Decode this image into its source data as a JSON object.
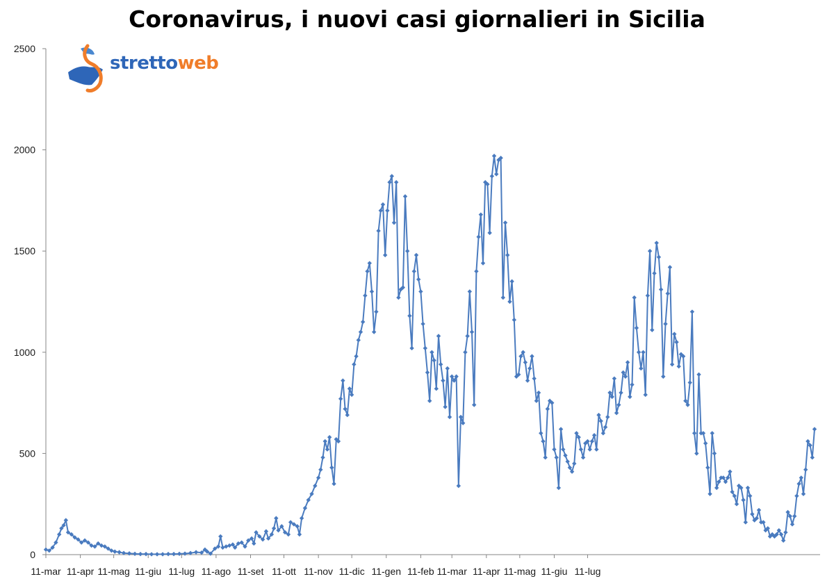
{
  "title": "Coronavirus, i nuovi casi giornalieri in Sicilia",
  "logo": {
    "part1": "stretto",
    "part2": "web"
  },
  "colors": {
    "series": "#4a7bbf",
    "axis": "#868686",
    "logo_blue": "#2e66b8",
    "logo_orange": "#f07d2a"
  },
  "chart_data": {
    "type": "line",
    "title": "Coronavirus, i nuovi casi giornalieri in Sicilia",
    "xlabel": "",
    "ylabel": "",
    "ylim": [
      0,
      2500
    ],
    "yticks": [
      0,
      500,
      1000,
      1500,
      2000,
      2500
    ],
    "xtick_labels": [
      "11-mar",
      "11-apr",
      "11-mag",
      "11-giu",
      "11-lug",
      "11-ago",
      "11-set",
      "11-ott",
      "11-nov",
      "11-dic",
      "11-gen",
      "11-feb",
      "11-mar",
      "11-apr",
      "11-mag",
      "11-giu",
      "11-lug"
    ],
    "xtick_days": [
      0,
      31,
      61,
      92,
      122,
      153,
      184,
      214,
      245,
      275,
      306,
      337,
      365,
      396,
      426,
      457,
      487
    ],
    "grid": false,
    "legend": "none",
    "markers": "diamond",
    "series": [
      {
        "values": [
          [
            0,
            25
          ],
          [
            3,
            20
          ],
          [
            6,
            35
          ],
          [
            9,
            60
          ],
          [
            12,
            100
          ],
          [
            14,
            130
          ],
          [
            16,
            145
          ],
          [
            18,
            170
          ],
          [
            20,
            110
          ],
          [
            23,
            100
          ],
          [
            26,
            85
          ],
          [
            29,
            75
          ],
          [
            32,
            60
          ],
          [
            35,
            70
          ],
          [
            38,
            60
          ],
          [
            41,
            45
          ],
          [
            44,
            40
          ],
          [
            47,
            55
          ],
          [
            50,
            45
          ],
          [
            53,
            40
          ],
          [
            56,
            30
          ],
          [
            59,
            20
          ],
          [
            62,
            15
          ],
          [
            66,
            12
          ],
          [
            70,
            8
          ],
          [
            75,
            6
          ],
          [
            80,
            4
          ],
          [
            85,
            3
          ],
          [
            90,
            3
          ],
          [
            95,
            2
          ],
          [
            100,
            2
          ],
          [
            105,
            2
          ],
          [
            110,
            3
          ],
          [
            115,
            3
          ],
          [
            120,
            4
          ],
          [
            125,
            5
          ],
          [
            130,
            8
          ],
          [
            135,
            12
          ],
          [
            140,
            10
          ],
          [
            143,
            25
          ],
          [
            145,
            15
          ],
          [
            148,
            5
          ],
          [
            152,
            30
          ],
          [
            155,
            40
          ],
          [
            157,
            90
          ],
          [
            159,
            35
          ],
          [
            162,
            40
          ],
          [
            165,
            45
          ],
          [
            168,
            50
          ],
          [
            170,
            35
          ],
          [
            173,
            55
          ],
          [
            176,
            60
          ],
          [
            179,
            40
          ],
          [
            182,
            70
          ],
          [
            185,
            80
          ],
          [
            187,
            55
          ],
          [
            189,
            110
          ],
          [
            192,
            90
          ],
          [
            195,
            75
          ],
          [
            198,
            115
          ],
          [
            200,
            80
          ],
          [
            203,
            100
          ],
          [
            205,
            130
          ],
          [
            207,
            180
          ],
          [
            209,
            120
          ],
          [
            212,
            140
          ],
          [
            215,
            110
          ],
          [
            218,
            100
          ],
          [
            220,
            160
          ],
          [
            223,
            150
          ],
          [
            226,
            140
          ],
          [
            228,
            100
          ],
          [
            230,
            180
          ],
          [
            233,
            230
          ],
          [
            236,
            270
          ],
          [
            239,
            300
          ],
          [
            242,
            340
          ],
          [
            245,
            380
          ],
          [
            247,
            420
          ],
          [
            249,
            480
          ],
          [
            251,
            560
          ],
          [
            253,
            520
          ],
          [
            255,
            580
          ],
          [
            257,
            430
          ],
          [
            259,
            350
          ],
          [
            261,
            570
          ],
          [
            263,
            560
          ],
          [
            265,
            770
          ],
          [
            267,
            860
          ],
          [
            269,
            720
          ],
          [
            271,
            690
          ],
          [
            273,
            820
          ],
          [
            275,
            790
          ],
          [
            277,
            940
          ],
          [
            279,
            980
          ],
          [
            281,
            1060
          ],
          [
            283,
            1100
          ],
          [
            285,
            1150
          ],
          [
            287,
            1280
          ],
          [
            289,
            1400
          ],
          [
            291,
            1440
          ],
          [
            293,
            1300
          ],
          [
            295,
            1100
          ],
          [
            297,
            1200
          ],
          [
            299,
            1600
          ],
          [
            301,
            1700
          ],
          [
            303,
            1730
          ],
          [
            305,
            1480
          ],
          [
            307,
            1700
          ],
          [
            309,
            1840
          ],
          [
            311,
            1870
          ],
          [
            313,
            1640
          ],
          [
            315,
            1840
          ],
          [
            317,
            1270
          ],
          [
            319,
            1310
          ],
          [
            321,
            1320
          ],
          [
            323,
            1770
          ],
          [
            325,
            1500
          ],
          [
            327,
            1180
          ],
          [
            329,
            1020
          ],
          [
            331,
            1400
          ],
          [
            333,
            1480
          ],
          [
            335,
            1360
          ],
          [
            337,
            1300
          ],
          [
            339,
            1140
          ],
          [
            341,
            1020
          ],
          [
            343,
            900
          ],
          [
            345,
            760
          ],
          [
            347,
            1000
          ],
          [
            349,
            960
          ],
          [
            351,
            820
          ],
          [
            353,
            1080
          ],
          [
            355,
            940
          ],
          [
            357,
            860
          ],
          [
            359,
            730
          ],
          [
            361,
            920
          ],
          [
            363,
            680
          ],
          [
            365,
            880
          ],
          [
            367,
            860
          ],
          [
            369,
            880
          ],
          [
            371,
            340
          ],
          [
            373,
            680
          ],
          [
            375,
            650
          ],
          [
            377,
            1000
          ],
          [
            379,
            1080
          ],
          [
            381,
            1300
          ],
          [
            383,
            1100
          ],
          [
            385,
            740
          ],
          [
            387,
            1400
          ],
          [
            389,
            1570
          ],
          [
            391,
            1680
          ],
          [
            393,
            1440
          ],
          [
            395,
            1840
          ],
          [
            397,
            1830
          ],
          [
            399,
            1590
          ],
          [
            401,
            1870
          ],
          [
            403,
            1970
          ],
          [
            405,
            1880
          ],
          [
            407,
            1950
          ],
          [
            409,
            1960
          ],
          [
            411,
            1270
          ],
          [
            413,
            1640
          ],
          [
            415,
            1480
          ],
          [
            417,
            1250
          ],
          [
            419,
            1350
          ],
          [
            421,
            1160
          ],
          [
            423,
            880
          ],
          [
            425,
            890
          ],
          [
            427,
            980
          ],
          [
            429,
            1000
          ],
          [
            431,
            950
          ],
          [
            433,
            860
          ],
          [
            435,
            920
          ],
          [
            437,
            980
          ],
          [
            439,
            870
          ],
          [
            441,
            760
          ],
          [
            443,
            800
          ],
          [
            445,
            600
          ],
          [
            447,
            560
          ],
          [
            449,
            480
          ],
          [
            451,
            720
          ],
          [
            453,
            760
          ],
          [
            455,
            750
          ],
          [
            457,
            520
          ],
          [
            459,
            480
          ],
          [
            461,
            330
          ],
          [
            463,
            620
          ],
          [
            465,
            520
          ],
          [
            467,
            490
          ],
          [
            469,
            460
          ],
          [
            471,
            430
          ],
          [
            473,
            410
          ],
          [
            475,
            450
          ],
          [
            477,
            600
          ],
          [
            479,
            580
          ],
          [
            481,
            520
          ],
          [
            483,
            480
          ],
          [
            485,
            550
          ],
          [
            487,
            560
          ],
          [
            489,
            520
          ],
          [
            491,
            560
          ],
          [
            493,
            590
          ],
          [
            495,
            520
          ],
          [
            497,
            690
          ],
          [
            499,
            660
          ],
          [
            501,
            600
          ],
          [
            503,
            630
          ],
          [
            505,
            680
          ],
          [
            507,
            800
          ],
          [
            509,
            780
          ],
          [
            511,
            870
          ],
          [
            513,
            700
          ],
          [
            515,
            740
          ],
          [
            517,
            800
          ],
          [
            519,
            900
          ],
          [
            521,
            880
          ],
          [
            523,
            950
          ],
          [
            525,
            780
          ],
          [
            527,
            840
          ],
          [
            529,
            1270
          ],
          [
            531,
            1120
          ],
          [
            533,
            1000
          ],
          [
            535,
            920
          ],
          [
            537,
            1000
          ],
          [
            539,
            790
          ],
          [
            541,
            1280
          ],
          [
            543,
            1500
          ],
          [
            545,
            1110
          ],
          [
            547,
            1390
          ],
          [
            549,
            1540
          ],
          [
            551,
            1470
          ],
          [
            553,
            1310
          ],
          [
            555,
            880
          ],
          [
            557,
            1140
          ],
          [
            559,
            1290
          ],
          [
            561,
            1420
          ],
          [
            563,
            940
          ],
          [
            565,
            1090
          ],
          [
            567,
            1050
          ],
          [
            569,
            930
          ],
          [
            571,
            990
          ],
          [
            573,
            980
          ],
          [
            575,
            760
          ],
          [
            577,
            740
          ],
          [
            579,
            850
          ],
          [
            581,
            1200
          ],
          [
            583,
            600
          ],
          [
            585,
            500
          ],
          [
            587,
            890
          ],
          [
            589,
            600
          ],
          [
            591,
            600
          ],
          [
            593,
            550
          ],
          [
            595,
            430
          ],
          [
            597,
            300
          ],
          [
            599,
            600
          ],
          [
            601,
            500
          ],
          [
            603,
            330
          ],
          [
            605,
            360
          ],
          [
            607,
            380
          ],
          [
            609,
            380
          ],
          [
            611,
            360
          ],
          [
            613,
            380
          ],
          [
            615,
            410
          ],
          [
            617,
            310
          ],
          [
            619,
            290
          ],
          [
            621,
            250
          ],
          [
            623,
            340
          ],
          [
            625,
            330
          ],
          [
            627,
            270
          ],
          [
            629,
            160
          ],
          [
            631,
            330
          ],
          [
            633,
            290
          ],
          [
            635,
            200
          ],
          [
            637,
            170
          ],
          [
            639,
            180
          ],
          [
            641,
            220
          ],
          [
            643,
            160
          ],
          [
            645,
            160
          ],
          [
            647,
            120
          ],
          [
            649,
            130
          ],
          [
            651,
            90
          ],
          [
            653,
            100
          ],
          [
            655,
            90
          ],
          [
            657,
            100
          ],
          [
            659,
            120
          ],
          [
            661,
            100
          ],
          [
            663,
            70
          ],
          [
            665,
            110
          ],
          [
            667,
            210
          ],
          [
            669,
            190
          ],
          [
            671,
            150
          ],
          [
            673,
            190
          ],
          [
            675,
            290
          ],
          [
            677,
            350
          ],
          [
            679,
            380
          ],
          [
            681,
            300
          ],
          [
            683,
            420
          ],
          [
            685,
            560
          ],
          [
            687,
            540
          ],
          [
            689,
            480
          ],
          [
            691,
            620
          ]
        ]
      }
    ]
  }
}
